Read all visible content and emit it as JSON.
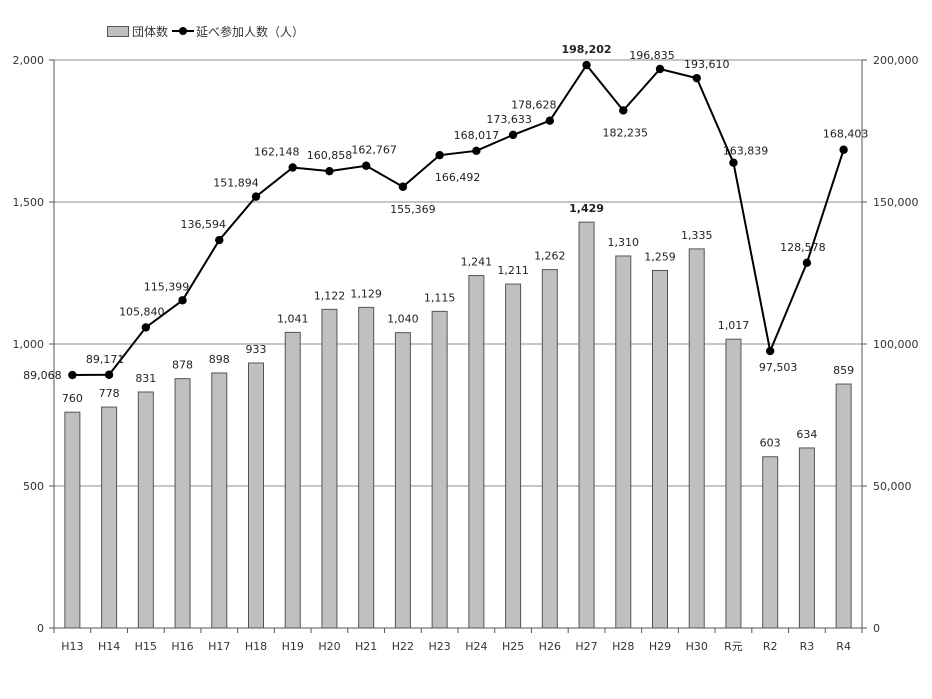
{
  "chart_data": {
    "type": "bar+line",
    "title": "",
    "legend": {
      "position": "top-left",
      "bar_label": "団体数",
      "line_label": "延べ参加人数（人）"
    },
    "categories": [
      "H13",
      "H14",
      "H15",
      "H16",
      "H17",
      "H18",
      "H19",
      "H20",
      "H21",
      "H22",
      "H23",
      "H24",
      "H25",
      "H26",
      "H27",
      "H28",
      "H29",
      "H30",
      "R元",
      "R2",
      "R3",
      "R4"
    ],
    "series": [
      {
        "name": "団体数",
        "type": "bar",
        "axis": "left",
        "values": [
          760,
          778,
          831,
          878,
          898,
          933,
          1041,
          1122,
          1129,
          1040,
          1115,
          1241,
          1211,
          1262,
          1429,
          1310,
          1259,
          1335,
          1017,
          603,
          634,
          859
        ],
        "labels": [
          "760",
          "778",
          "831",
          "878",
          "898",
          "933",
          "1,041",
          "1,122",
          "1,129",
          "1,040",
          "1,115",
          "1,241",
          "1,211",
          "1,262",
          "1,429",
          "1,310",
          "1,259",
          "1,335",
          "1,017",
          "603",
          "634",
          "859"
        ],
        "color": "#c0c0c0"
      },
      {
        "name": "延べ参加人数（人）",
        "type": "line",
        "axis": "right",
        "values": [
          89068,
          89171,
          105840,
          115399,
          136594,
          151894,
          162148,
          160858,
          162767,
          155369,
          166492,
          168017,
          173633,
          178628,
          198202,
          182235,
          196835,
          193610,
          163839,
          97503,
          128578,
          168403
        ],
        "labels": [
          "89,068",
          "89,171",
          "105,840",
          "115,399",
          "136,594",
          "151,894",
          "162,148",
          "160,858",
          "162,767",
          "155,369",
          "166,492",
          "168,017",
          "173,633",
          "178,628",
          "198,202",
          "182,235",
          "196,835",
          "193,610",
          "163,839",
          "97,503",
          "128,578",
          "168,403"
        ],
        "color": "#000000"
      }
    ],
    "y_left": {
      "min": 0,
      "max": 2000,
      "ticks": [
        0,
        500,
        1000,
        1500,
        2000
      ],
      "tick_labels": [
        "0",
        "500",
        "1,000",
        "1,500",
        "2,000"
      ]
    },
    "y_right": {
      "min": 0,
      "max": 200000,
      "ticks": [
        0,
        50000,
        100000,
        150000,
        200000
      ],
      "tick_labels": [
        "0",
        "50,000",
        "100,000",
        "150,000",
        "200,000"
      ]
    },
    "grid": true,
    "bold_label_index": 14
  }
}
